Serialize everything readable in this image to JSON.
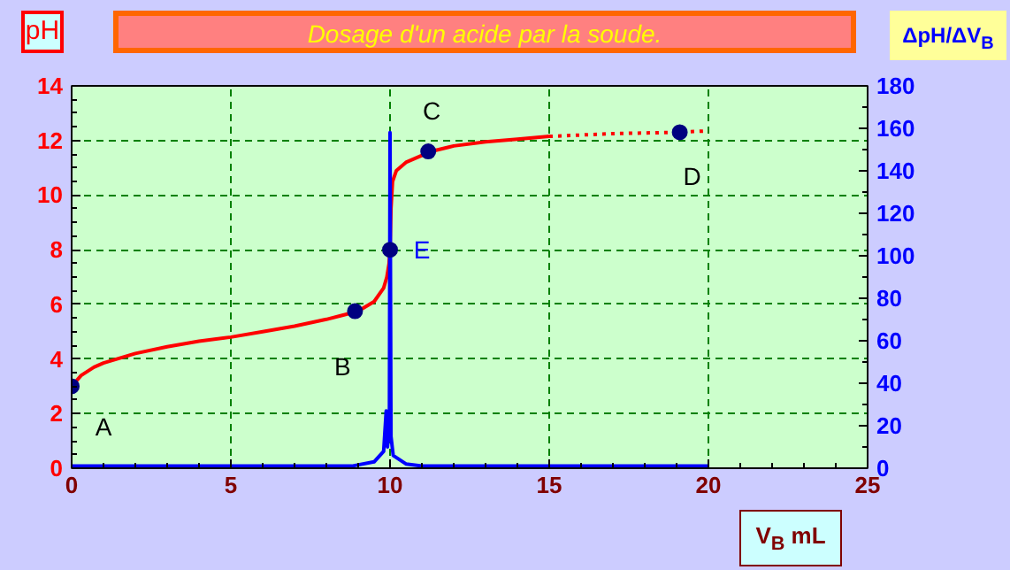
{
  "chart_data": {
    "type": "line",
    "title": "Dosage d'un acide  par la soude.",
    "ylabel": "pH",
    "y2label": "ΔpH/ΔV$_{B}$",
    "xlabel": "V$_{B}$ mL",
    "xlim": [
      0,
      25
    ],
    "xticks": [
      0,
      5,
      10,
      15,
      20,
      25
    ],
    "ylim": [
      0,
      14
    ],
    "yticks": [
      0,
      2,
      4,
      6,
      8,
      10,
      12,
      14
    ],
    "y2lim": [
      0,
      180
    ],
    "y2ticks": [
      0,
      20,
      40,
      60,
      80,
      100,
      120,
      140,
      160,
      180
    ],
    "grid": true,
    "series": [
      {
        "color": "#ff0000",
        "line_style": "solid",
        "x": [
          0,
          0.3,
          0.7,
          1,
          2,
          3,
          4,
          5,
          6,
          7,
          8,
          8.5,
          9,
          9.5,
          9.8,
          9.9,
          9.97,
          10,
          10.03,
          10.08,
          10.2,
          10.5,
          11,
          11.3,
          12,
          13,
          14,
          15
        ],
        "values": [
          3,
          3.4,
          3.7,
          3.85,
          4.2,
          4.45,
          4.65,
          4.8,
          5.0,
          5.2,
          5.45,
          5.6,
          5.75,
          6.1,
          6.6,
          7.0,
          7.5,
          8,
          9.5,
          10.5,
          10.9,
          11.2,
          11.45,
          11.6,
          11.8,
          11.95,
          12.05,
          12.15
        ]
      },
      {
        "color": "#ff0000",
        "line_style": "dotted",
        "x": [
          15,
          17,
          19,
          20
        ],
        "values": [
          12.15,
          12.25,
          12.3,
          12.35
        ]
      },
      {
        "type": "line",
        "color": "#0000ff",
        "axis": "y2",
        "line_style": "solid",
        "x": [
          0,
          1,
          5,
          8.8,
          9.5,
          9.8,
          9.88,
          9.92,
          9.98,
          10,
          10.03,
          10.1,
          10.5,
          11,
          13,
          20
        ],
        "values": [
          1,
          1,
          1,
          1,
          3,
          8,
          27,
          10,
          20,
          158,
          15,
          6,
          2,
          1,
          1,
          1
        ]
      },
      {
        "type": "scatter",
        "color": "#000080",
        "marker": "circle",
        "x": [
          0,
          8.9,
          10,
          11.2,
          19.1
        ],
        "values": [
          3,
          5.75,
          8,
          11.6,
          12.3
        ]
      }
    ],
    "annotations": [
      {
        "text": "A",
        "x": 0,
        "y": 3
      },
      {
        "text": "B",
        "x": 8.9,
        "y": 5.75
      },
      {
        "text": "E",
        "x": 10,
        "y": 8
      },
      {
        "text": "C",
        "x": 11.2,
        "y": 11.6
      },
      {
        "text": "D",
        "x": 19.1,
        "y": 12.3
      }
    ]
  }
}
